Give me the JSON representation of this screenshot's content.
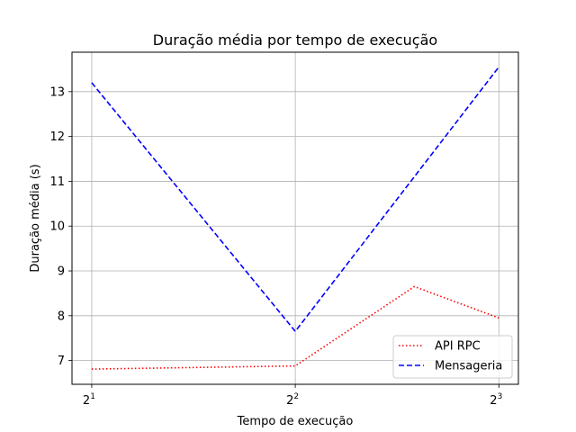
{
  "chart_data": {
    "type": "line",
    "title": "Duração média por tempo de execução",
    "xlabel": "Tempo de execução",
    "ylabel": "Duração média (s)",
    "x_scale": "log2",
    "xlim": [
      1.87,
      8.55
    ],
    "ylim": [
      6.47,
      13.88
    ],
    "x_ticks": [
      {
        "value": 2,
        "base": "2",
        "exp": "1"
      },
      {
        "value": 4,
        "base": "2",
        "exp": "2"
      },
      {
        "value": 8,
        "base": "2",
        "exp": "3"
      }
    ],
    "y_ticks": [
      7,
      8,
      9,
      10,
      11,
      12,
      13
    ],
    "grid": true,
    "legend_position": "lower-right",
    "series": [
      {
        "name": "API RPC",
        "color": "#ff0000",
        "linestyle": "dotted",
        "x": [
          2,
          4,
          6,
          8
        ],
        "y": [
          6.81,
          6.88,
          8.65,
          7.95
        ]
      },
      {
        "name": "Mensageria",
        "color": "#0000ff",
        "linestyle": "dashed",
        "x": [
          2,
          4,
          8
        ],
        "y": [
          13.2,
          7.65,
          13.55
        ]
      }
    ]
  }
}
